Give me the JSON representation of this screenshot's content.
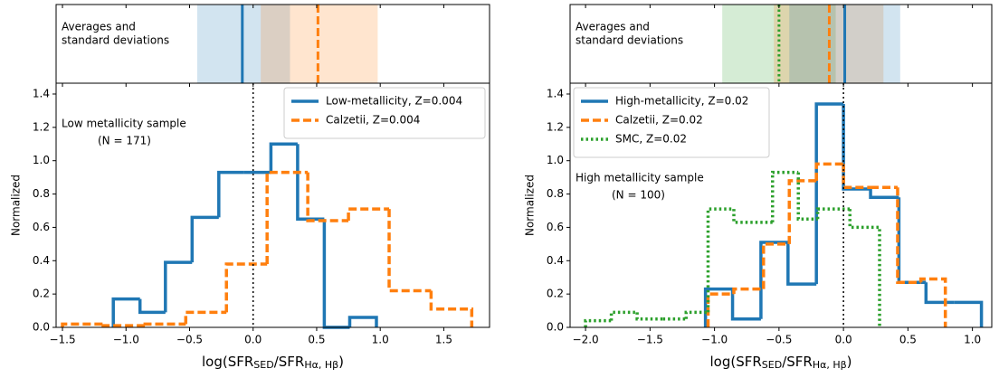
{
  "chart_data": [
    {
      "type": "histogram",
      "strip": {
        "label": [
          "Averages and",
          "standard deviations"
        ],
        "bands": [
          {
            "color": "#1f77b4",
            "mean": -0.085,
            "band": [
              -0.44,
              0.29
            ],
            "style": "solid"
          },
          {
            "color": "#ff7f0e",
            "mean": 0.51,
            "band": [
              0.06,
              0.98
            ],
            "style": "dashed"
          }
        ]
      },
      "annotation": [
        "Low metallicity sample",
        "(N = 171)"
      ],
      "xlabel": [
        "log(SFR",
        "SED",
        "/SFR",
        "Hα, Hβ",
        ")"
      ],
      "ylabel": "Normalized",
      "xlim": [
        -1.55,
        1.86
      ],
      "ylim": [
        0,
        1.465
      ],
      "xticks": [
        {
          "value": -1.5,
          "label": "−1.5"
        },
        {
          "value": -1,
          "label": "−1.0"
        },
        {
          "value": -0.5,
          "label": "−0.5"
        },
        {
          "value": 0,
          "label": "0.0"
        },
        {
          "value": 0.5,
          "label": "0.5"
        },
        {
          "value": 1,
          "label": "1.0"
        },
        {
          "value": 1.5,
          "label": "1.5"
        }
      ],
      "yticks": [
        {
          "value": 0,
          "label": "0.0"
        },
        0.2,
        0.4,
        0.6,
        0.8,
        {
          "value": 1,
          "label": "1.0"
        },
        1.2,
        1.4
      ],
      "refline": 0,
      "legend": "upper right",
      "series": [
        {
          "name": "Low-metallicity, Z=0.004",
          "color": "#1f77b4",
          "style": "solid",
          "bins": [
            -1.1,
            -0.89,
            -0.69,
            -0.48,
            -0.27,
            -0.07,
            0.14,
            0.35,
            0.56,
            0.76,
            0.97
          ],
          "values": [
            0.17,
            0.09,
            0.39,
            0.66,
            0.93,
            0.93,
            1.1,
            0.65,
            0.0,
            0.06
          ]
        },
        {
          "name": "Calzetii, Z=0.004",
          "color": "#ff7f0e",
          "style": "dashed",
          "bins": [
            -1.5,
            -1.18,
            -0.85,
            -0.53,
            -0.21,
            0.11,
            0.43,
            0.75,
            1.07,
            1.4,
            1.72
          ],
          "values": [
            0.02,
            0.01,
            0.02,
            0.09,
            0.38,
            0.93,
            0.64,
            0.71,
            0.22,
            0.11
          ]
        }
      ]
    },
    {
      "type": "histogram",
      "strip": {
        "label": [
          "Averages and",
          "standard deviations"
        ],
        "bands": [
          {
            "color": "#2ca02c",
            "mean": -0.5,
            "band": [
              -0.94,
              -0.06
            ],
            "style": "dotted"
          },
          {
            "color": "#ff7f0e",
            "mean": -0.11,
            "band": [
              -0.54,
              0.31
            ],
            "style": "dashed"
          },
          {
            "color": "#1f77b4",
            "mean": 0.01,
            "band": [
              -0.42,
              0.44
            ],
            "style": "solid"
          }
        ]
      },
      "annotation": [
        "High metallicity sample",
        "(N = 100)"
      ],
      "xlabel": [
        "log(SFR",
        "SED",
        "/SFR",
        "Hα, Hβ",
        ")"
      ],
      "ylabel": "Normalized",
      "xlim": [
        -2.12,
        1.15
      ],
      "ylim": [
        0,
        1.465
      ],
      "xticks": [
        {
          "value": -2,
          "label": "−2.0"
        },
        {
          "value": -1.5,
          "label": "−1.5"
        },
        {
          "value": -1,
          "label": "−1.0"
        },
        {
          "value": -0.5,
          "label": "−0.5"
        },
        {
          "value": 0,
          "label": "0.0"
        },
        {
          "value": 0.5,
          "label": "0.5"
        },
        {
          "value": 1,
          "label": "1.0"
        }
      ],
      "yticks": [
        {
          "value": 0,
          "label": "0.0"
        },
        0.2,
        0.4,
        0.6,
        0.8,
        {
          "value": 1,
          "label": "1.0"
        },
        1.2,
        1.4
      ],
      "refline": 0,
      "legend": "upper left",
      "series": [
        {
          "name": "High-metallicity, Z=0.02",
          "color": "#1f77b4",
          "style": "solid",
          "bins": [
            -1.07,
            -0.86,
            -0.64,
            -0.43,
            -0.21,
            0.0,
            0.21,
            0.43,
            0.64,
            0.86,
            1.07
          ],
          "values": [
            0.23,
            0.05,
            0.51,
            0.26,
            1.34,
            0.83,
            0.78,
            0.27,
            0.15,
            0.15
          ]
        },
        {
          "name": "Calzetii, Z=0.02",
          "color": "#ff7f0e",
          "style": "dashed",
          "bins": [
            -1.05,
            -0.85,
            -0.62,
            -0.42,
            -0.21,
            0.0,
            0.21,
            0.42,
            0.6,
            0.79
          ],
          "values": [
            0.2,
            0.23,
            0.5,
            0.88,
            0.98,
            0.84,
            0.84,
            0.27,
            0.29
          ]
        },
        {
          "name": "SMC, Z=0.02",
          "color": "#2ca02c",
          "style": "dotted",
          "bins": [
            -2.0,
            -1.8,
            -1.6,
            -1.4,
            -1.22,
            -1.05,
            -0.85,
            -0.55,
            -0.35,
            -0.2,
            0.05,
            0.28
          ],
          "values": [
            0.04,
            0.09,
            0.05,
            0.05,
            0.09,
            0.71,
            0.63,
            0.93,
            0.65,
            0.71,
            0.6
          ]
        }
      ]
    }
  ]
}
